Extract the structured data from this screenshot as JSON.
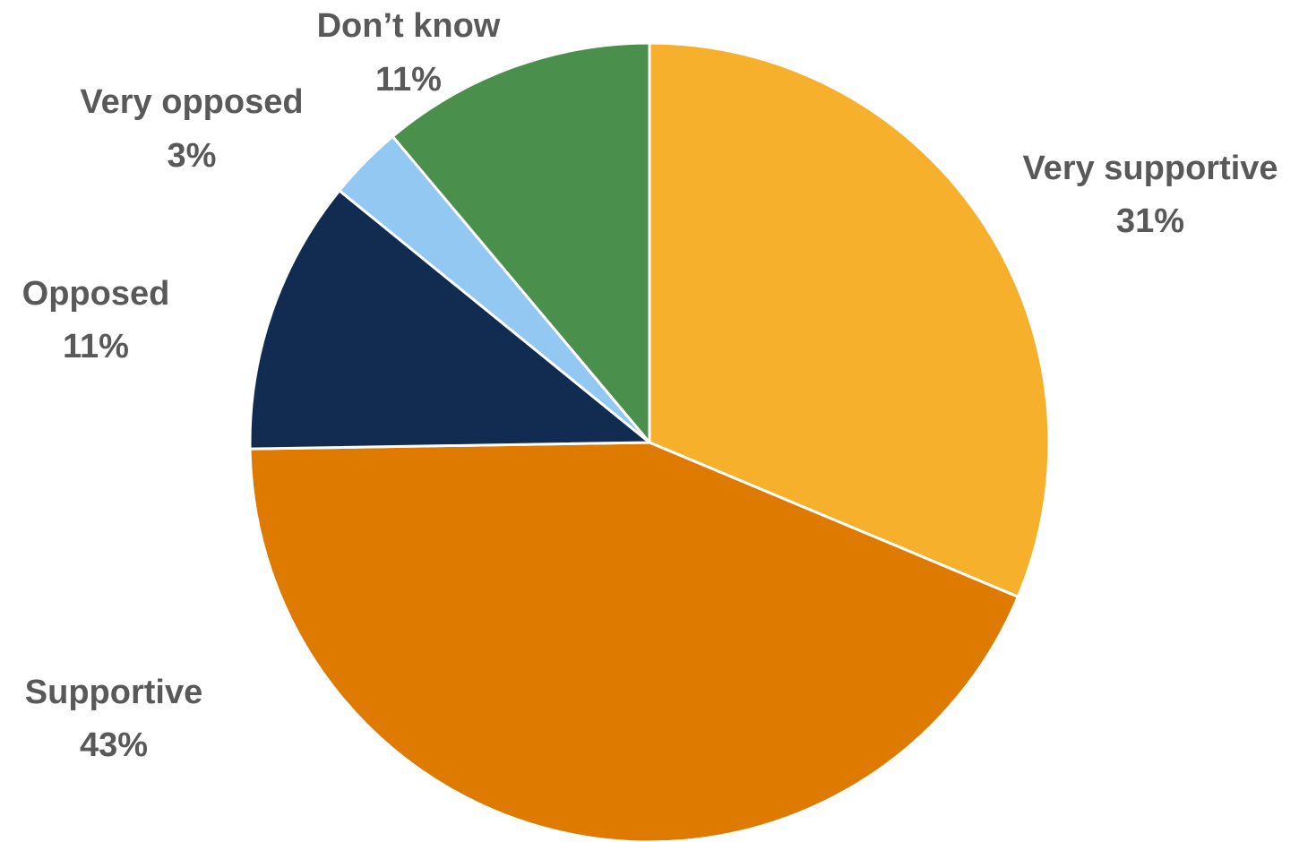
{
  "chart_data": {
    "type": "pie",
    "title": "",
    "slices": [
      {
        "label": "Very supportive",
        "value": 31,
        "value_label": "31%",
        "color": "#F6B02C"
      },
      {
        "label": "Supportive",
        "value": 43,
        "value_label": "43%",
        "color": "#DE7A00"
      },
      {
        "label": "Opposed",
        "value": 11,
        "value_label": "11%",
        "color": "#112C50"
      },
      {
        "label": "Very opposed",
        "value": 3,
        "value_label": "3%",
        "color": "#92C8F2"
      },
      {
        "label": "Don’t know",
        "value": 11,
        "value_label": "11%",
        "color": "#4A8F4C"
      }
    ],
    "start_angle": "12 o'clock",
    "direction": "clockwise",
    "legend": "none",
    "data_labels": "outside"
  }
}
